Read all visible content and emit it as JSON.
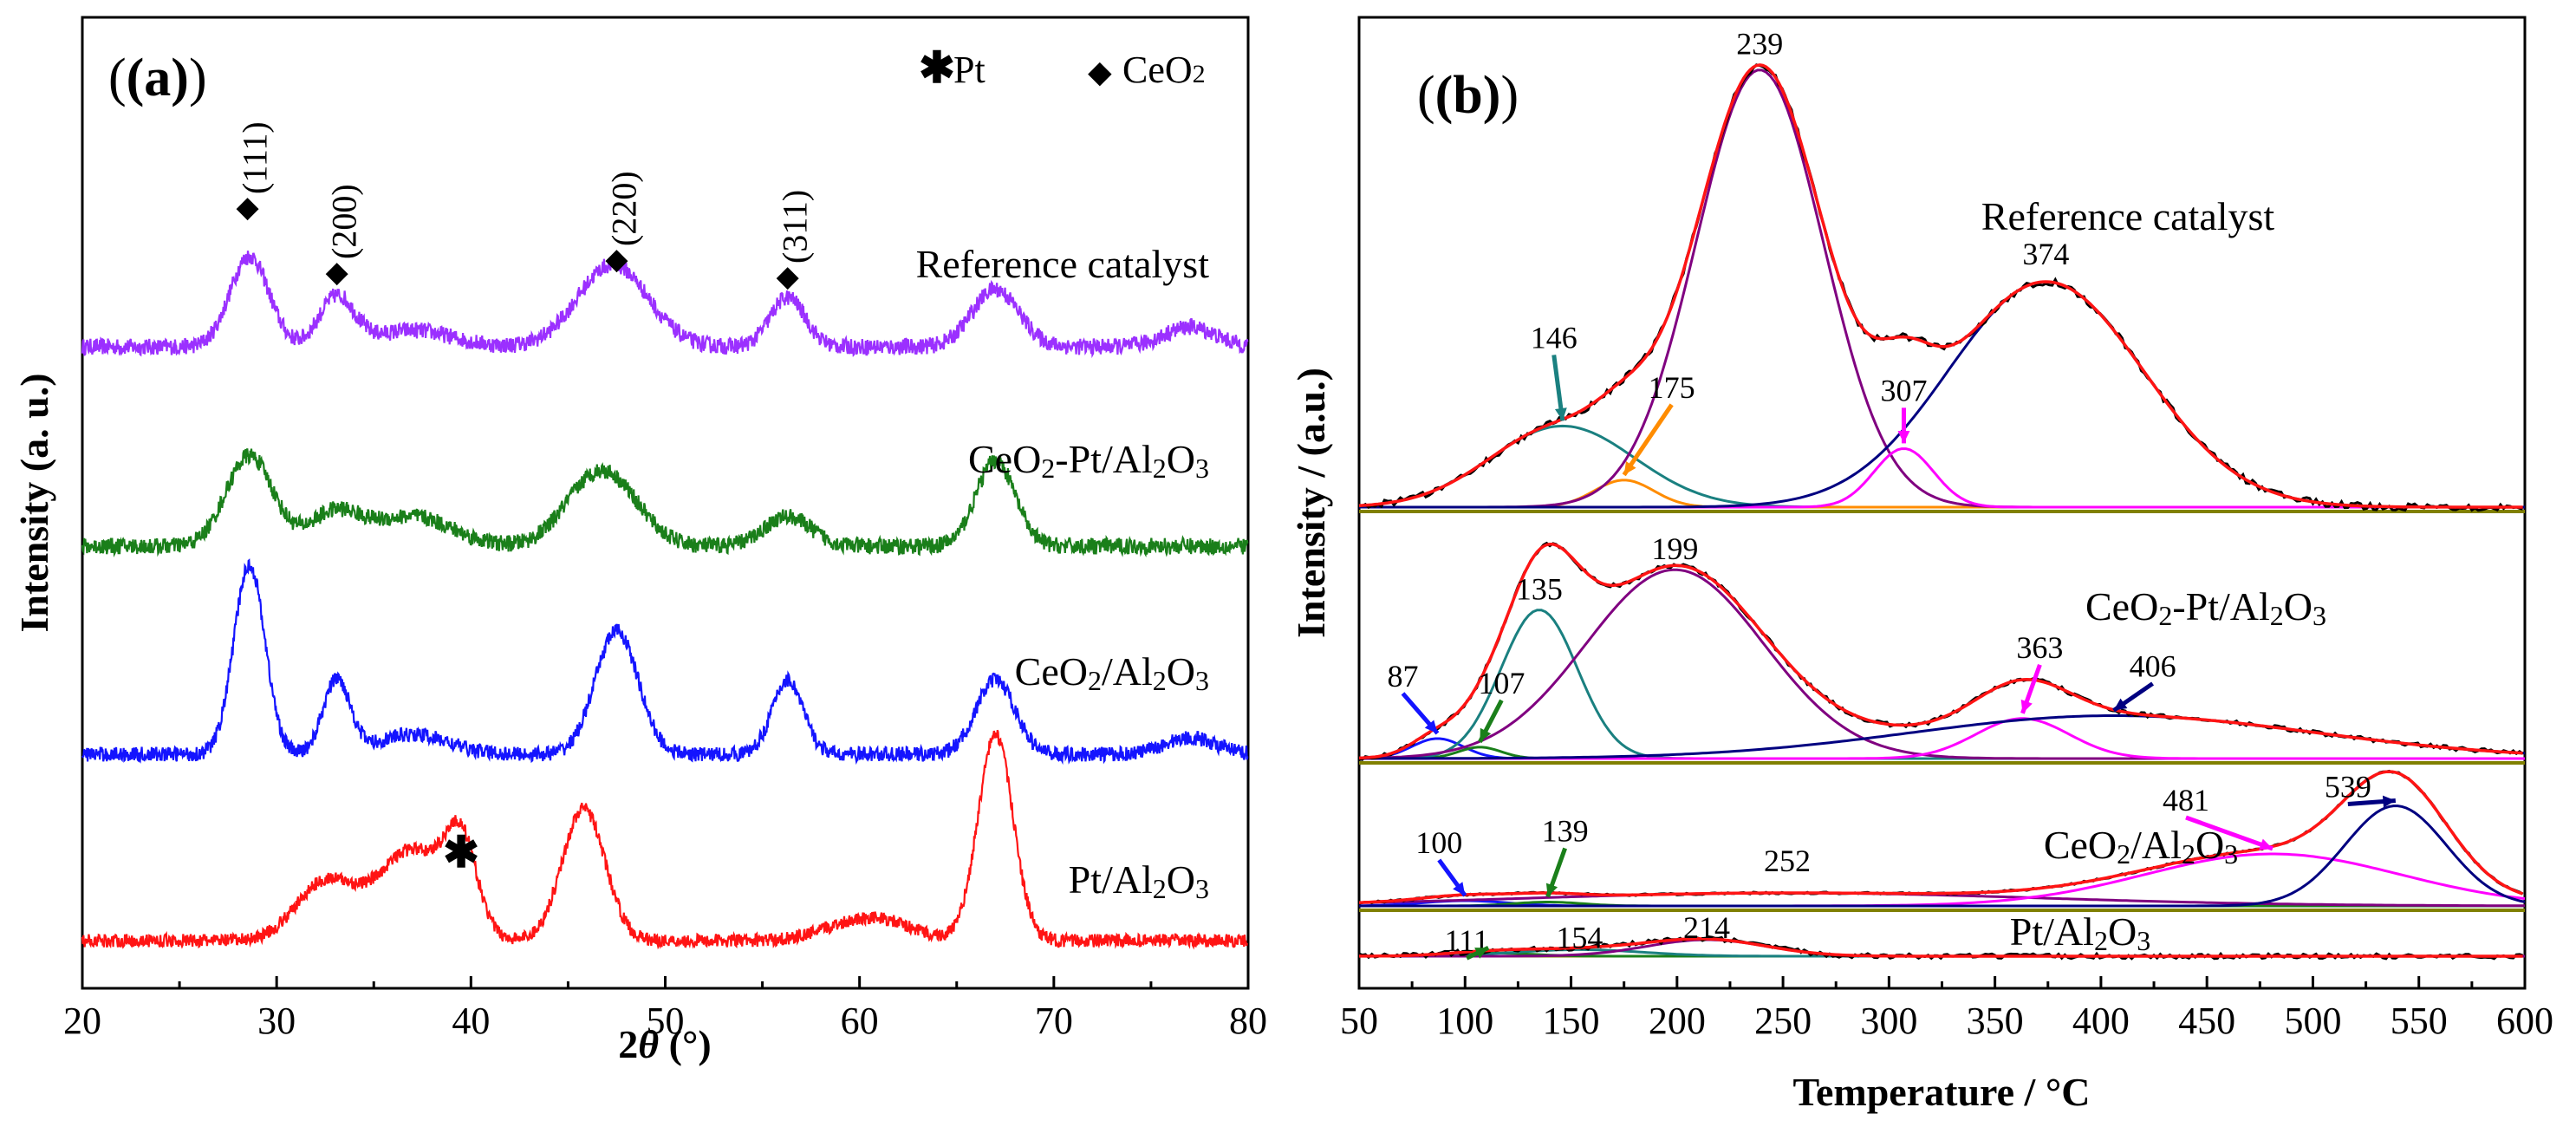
{
  "chart_data": [
    {
      "type": "line",
      "panel": "(a)",
      "xlabel": "2θ (°)",
      "ylabel": "Intensity (a. u.)",
      "xlim": [
        20,
        80
      ],
      "xticks": [
        20,
        30,
        40,
        50,
        60,
        70,
        80
      ],
      "legend": [
        {
          "symbol": "✱",
          "label": "Pt"
        },
        {
          "symbol": "◆",
          "label": "CeO2"
        }
      ],
      "ce_reflections": [
        {
          "x": 28.5,
          "label": "(111)"
        },
        {
          "x": 33.1,
          "label": "(200)"
        },
        {
          "x": 47.5,
          "label": "(220)"
        },
        {
          "x": 56.3,
          "label": "(311)"
        }
      ],
      "pt_marker": {
        "x": 39.5
      },
      "series": [
        {
          "name": "Reference catalyst",
          "color": "#9b30ff",
          "baseline": 0.0,
          "noise": 0.1,
          "peaks": [
            [
              28.6,
              0.55,
              1.0
            ],
            [
              33.1,
              0.3,
              0.9
            ],
            [
              37.0,
              0.1,
              2.0
            ],
            [
              47.3,
              0.5,
              1.8
            ],
            [
              56.3,
              0.3,
              0.9
            ],
            [
              67.0,
              0.35,
              1.2
            ],
            [
              77.0,
              0.12,
              1.3
            ]
          ]
        },
        {
          "name": "CeO2-Pt/Al2O3",
          "color": "#1a7f1a",
          "baseline": 0.0,
          "noise": 0.1,
          "peaks": [
            [
              28.6,
              0.55,
              1.2
            ],
            [
              33.0,
              0.2,
              1.3
            ],
            [
              37.0,
              0.18,
              2.0
            ],
            [
              46.0,
              0.28,
              1.5
            ],
            [
              47.6,
              0.25,
              1.5
            ],
            [
              56.3,
              0.18,
              1.2
            ],
            [
              67.0,
              0.52,
              1.0
            ]
          ]
        },
        {
          "name": "CeO2/Al2O3",
          "color": "#1414ff",
          "baseline": 0.0,
          "noise": 0.09,
          "peaks": [
            [
              28.6,
              1.15,
              0.8
            ],
            [
              33.1,
              0.45,
              0.7
            ],
            [
              37.0,
              0.12,
              1.8
            ],
            [
              47.5,
              0.75,
              1.1
            ],
            [
              56.3,
              0.45,
              0.8
            ],
            [
              67.0,
              0.45,
              1.0
            ],
            [
              77.0,
              0.1,
              1.3
            ]
          ]
        },
        {
          "name": "Pt/Al2O3",
          "color": "#ff1414",
          "baseline": 0.0,
          "noise": 0.08,
          "peaks": [
            [
              32.5,
              0.35,
              1.5
            ],
            [
              37.0,
              0.55,
              1.8
            ],
            [
              39.5,
              0.5,
              0.8
            ],
            [
              45.8,
              0.8,
              1.1
            ],
            [
              60.5,
              0.14,
              2.0
            ],
            [
              67.0,
              1.25,
              0.9
            ]
          ]
        }
      ]
    },
    {
      "type": "line",
      "panel": "(b)",
      "xlabel": "Temperature / °C",
      "ylabel": "Intensity / (a.u.)",
      "xlim": [
        50,
        600
      ],
      "xticks": [
        50,
        100,
        150,
        200,
        250,
        300,
        350,
        400,
        450,
        500,
        550,
        600
      ],
      "samples": [
        {
          "name": "Reference catalyst",
          "components": [
            {
              "center": 146,
              "height": 0.18,
              "width": 34,
              "color": "#1a8080",
              "label": "146"
            },
            {
              "center": 175,
              "height": 0.06,
              "width": 14,
              "color": "#ff8c00",
              "label": "175"
            },
            {
              "center": 239,
              "height": 0.97,
              "width": 30,
              "color": "#800080",
              "label": "239"
            },
            {
              "center": 307,
              "height": 0.13,
              "width": 14,
              "color": "#ff00ff",
              "label": "307"
            },
            {
              "center": 374,
              "height": 0.5,
              "width": 46,
              "color": "#000080",
              "label": "374"
            }
          ]
        },
        {
          "name": "CeO2-Pt/Al2O3",
          "components": [
            {
              "center": 87,
              "height": 0.07,
              "width": 12,
              "color": "#1414ff",
              "label": "87"
            },
            {
              "center": 107,
              "height": 0.04,
              "width": 10,
              "color": "#1a7f1a",
              "label": "107"
            },
            {
              "center": 135,
              "height": 0.52,
              "width": 18,
              "color": "#1a8080",
              "label": "135"
            },
            {
              "center": 199,
              "height": 0.66,
              "width": 42,
              "color": "#800080",
              "label": "199"
            },
            {
              "center": 363,
              "height": 0.14,
              "width": 22,
              "color": "#ff00ff",
              "label": "363"
            },
            {
              "center": 406,
              "height": 0.15,
              "width": 95,
              "color": "#000080",
              "label": "406"
            }
          ]
        },
        {
          "name": "CeO2/Al2O3",
          "components": [
            {
              "center": 100,
              "height": 0.04,
              "width": 20,
              "color": "#1414ff",
              "label": "100"
            },
            {
              "center": 139,
              "height": 0.03,
              "width": 16,
              "color": "#1a7f1a",
              "label": "139"
            },
            {
              "center": 252,
              "height": 0.1,
              "width": 120,
              "color": "#800080",
              "label": "252"
            },
            {
              "center": 481,
              "height": 0.4,
              "width": 60,
              "color": "#ff00ff",
              "label": "481"
            },
            {
              "center": 539,
              "height": 0.77,
              "width": 24,
              "color": "#000080",
              "label": "539"
            }
          ]
        },
        {
          "name": "Pt/Al2O3",
          "components": [
            {
              "center": 111,
              "height": 0.01,
              "width": 20,
              "color": "#1a7f1a",
              "label": "111"
            },
            {
              "center": 154,
              "height": 0.02,
              "width": 30,
              "color": "#1a8080",
              "label": "154"
            },
            {
              "center": 214,
              "height": 0.05,
              "width": 28,
              "color": "#800080",
              "label": "214"
            }
          ]
        }
      ]
    }
  ]
}
